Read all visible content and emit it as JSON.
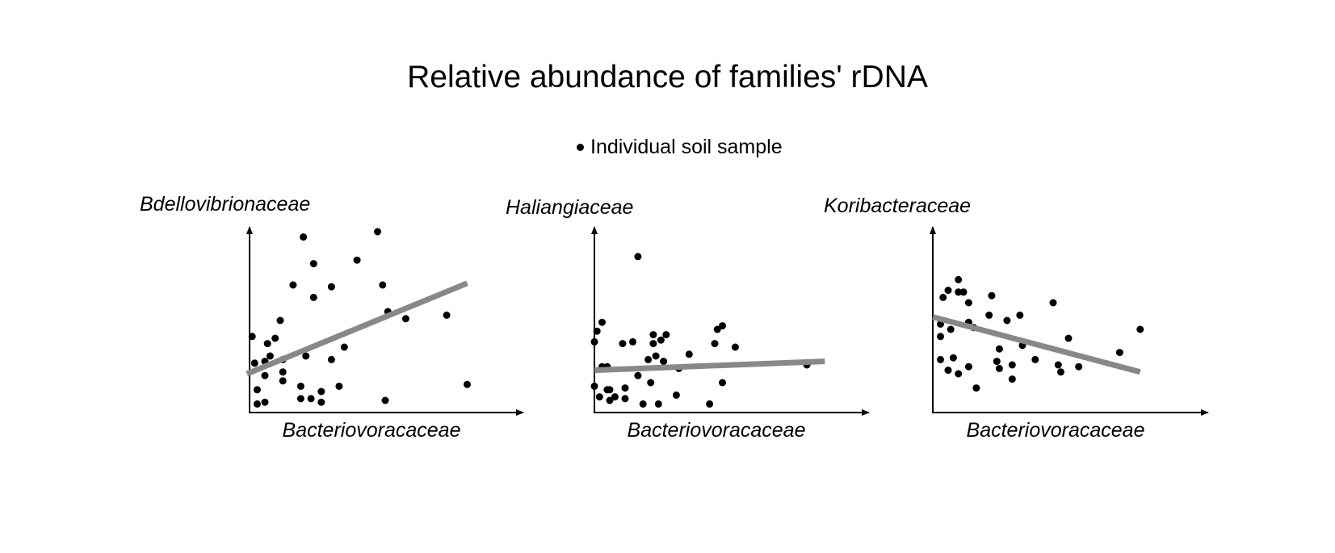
{
  "title": "Relative abundance of families' rDNA",
  "legend": {
    "label": "Individual soil sample",
    "marker": "dot"
  },
  "colors": {
    "points": "#000000",
    "trend": "#888888",
    "axes": "#000000"
  },
  "chart_data": [
    {
      "type": "scatter",
      "ylabel": "Bdellovibrionaceae",
      "xlabel": "Bacteriovoracaceae",
      "xlim": [
        0,
        1
      ],
      "ylim": [
        0,
        1
      ],
      "points": [
        [
          0.01,
          0.41
        ],
        [
          0.02,
          0.26
        ],
        [
          0.03,
          0.11
        ],
        [
          0.03,
          0.03
        ],
        [
          0.06,
          0.04
        ],
        [
          0.06,
          0.19
        ],
        [
          0.06,
          0.27
        ],
        [
          0.07,
          0.37
        ],
        [
          0.08,
          0.3
        ],
        [
          0.1,
          0.4
        ],
        [
          0.12,
          0.5
        ],
        [
          0.13,
          0.16
        ],
        [
          0.13,
          0.21
        ],
        [
          0.13,
          0.28
        ],
        [
          0.17,
          0.7
        ],
        [
          0.2,
          0.06
        ],
        [
          0.2,
          0.13
        ],
        [
          0.21,
          0.97
        ],
        [
          0.22,
          0.3
        ],
        [
          0.24,
          0.06
        ],
        [
          0.25,
          0.82
        ],
        [
          0.25,
          0.63
        ],
        [
          0.28,
          0.04
        ],
        [
          0.28,
          0.1
        ],
        [
          0.32,
          0.28
        ],
        [
          0.32,
          0.69
        ],
        [
          0.35,
          0.13
        ],
        [
          0.37,
          0.35
        ],
        [
          0.42,
          0.84
        ],
        [
          0.5,
          1.0
        ],
        [
          0.52,
          0.7
        ],
        [
          0.53,
          0.05
        ],
        [
          0.54,
          0.55
        ],
        [
          0.61,
          0.51
        ],
        [
          0.77,
          0.53
        ],
        [
          0.85,
          0.14
        ]
      ],
      "trend": [
        [
          -0.01,
          0.2
        ],
        [
          0.85,
          0.71
        ]
      ]
    },
    {
      "type": "scatter",
      "ylabel": "Haliangiaceae",
      "xlabel": "Bacteriovoracaceae",
      "xlim": [
        0,
        1
      ],
      "ylim": [
        0,
        1
      ],
      "points": [
        [
          0.0,
          0.38
        ],
        [
          0.0,
          0.13
        ],
        [
          0.01,
          0.44
        ],
        [
          0.02,
          0.07
        ],
        [
          0.03,
          0.49
        ],
        [
          0.03,
          0.24
        ],
        [
          0.05,
          0.11
        ],
        [
          0.05,
          0.24
        ],
        [
          0.06,
          0.05
        ],
        [
          0.06,
          0.11
        ],
        [
          0.08,
          0.07
        ],
        [
          0.11,
          0.37
        ],
        [
          0.12,
          0.12
        ],
        [
          0.12,
          0.06
        ],
        [
          0.15,
          0.38
        ],
        [
          0.17,
          0.19
        ],
        [
          0.17,
          0.86
        ],
        [
          0.19,
          0.03
        ],
        [
          0.21,
          0.28
        ],
        [
          0.22,
          0.15
        ],
        [
          0.23,
          0.37
        ],
        [
          0.23,
          0.42
        ],
        [
          0.24,
          0.3
        ],
        [
          0.25,
          0.03
        ],
        [
          0.26,
          0.39
        ],
        [
          0.27,
          0.27
        ],
        [
          0.28,
          0.42
        ],
        [
          0.32,
          0.08
        ],
        [
          0.33,
          0.23
        ],
        [
          0.37,
          0.31
        ],
        [
          0.45,
          0.03
        ],
        [
          0.47,
          0.37
        ],
        [
          0.48,
          0.45
        ],
        [
          0.5,
          0.47
        ],
        [
          0.5,
          0.15
        ],
        [
          0.55,
          0.35
        ],
        [
          0.83,
          0.25
        ]
      ],
      "trend": [
        [
          0.0,
          0.22
        ],
        [
          0.9,
          0.27
        ]
      ]
    },
    {
      "type": "scatter",
      "ylabel": "Koribacteraceae",
      "xlabel": "Bacteriovoracaceae",
      "xlim": [
        0,
        1
      ],
      "ylim": [
        0,
        1
      ],
      "points": [
        [
          0.03,
          0.28
        ],
        [
          0.03,
          0.41
        ],
        [
          0.03,
          0.48
        ],
        [
          0.04,
          0.63
        ],
        [
          0.06,
          0.22
        ],
        [
          0.06,
          0.67
        ],
        [
          0.07,
          0.45
        ],
        [
          0.08,
          0.29
        ],
        [
          0.1,
          0.73
        ],
        [
          0.1,
          0.2
        ],
        [
          0.1,
          0.66
        ],
        [
          0.12,
          0.66
        ],
        [
          0.14,
          0.6
        ],
        [
          0.14,
          0.24
        ],
        [
          0.14,
          0.49
        ],
        [
          0.16,
          0.46
        ],
        [
          0.17,
          0.12
        ],
        [
          0.22,
          0.53
        ],
        [
          0.23,
          0.64
        ],
        [
          0.25,
          0.27
        ],
        [
          0.26,
          0.34
        ],
        [
          0.26,
          0.23
        ],
        [
          0.29,
          0.5
        ],
        [
          0.31,
          0.17
        ],
        [
          0.31,
          0.25
        ],
        [
          0.34,
          0.53
        ],
        [
          0.35,
          0.36
        ],
        [
          0.4,
          0.28
        ],
        [
          0.47,
          0.6
        ],
        [
          0.49,
          0.25
        ],
        [
          0.5,
          0.21
        ],
        [
          0.53,
          0.4
        ],
        [
          0.57,
          0.24
        ],
        [
          0.73,
          0.32
        ],
        [
          0.81,
          0.45
        ]
      ],
      "trend": [
        [
          0.0,
          0.52
        ],
        [
          0.81,
          0.21
        ]
      ]
    }
  ]
}
